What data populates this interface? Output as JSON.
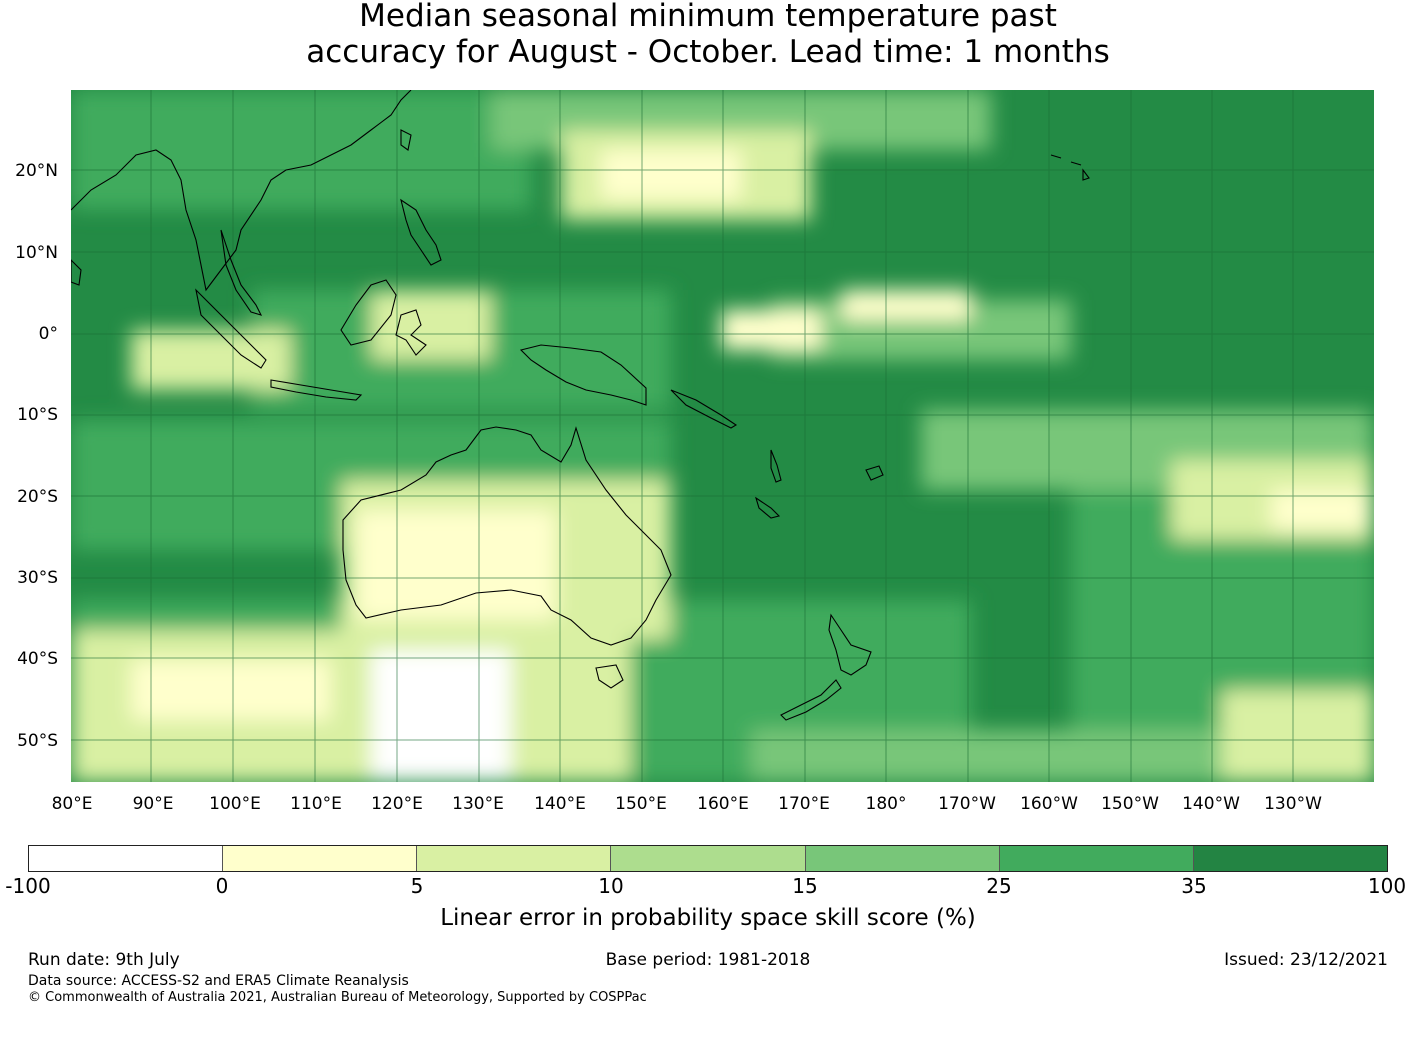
{
  "title_line1": "Median seasonal minimum temperature past",
  "title_line2": "accuracy for August - October. Lead time: 1 months",
  "map": {
    "lat_labels": [
      "20°N",
      "10°N",
      "0°",
      "10°S",
      "20°S",
      "30°S",
      "40°S",
      "50°S"
    ],
    "lon_labels": [
      "80°E",
      "90°E",
      "100°E",
      "110°E",
      "120°E",
      "130°E",
      "140°E",
      "150°E",
      "160°E",
      "170°E",
      "180°",
      "170°W",
      "160°W",
      "150°W",
      "140°W",
      "130°W"
    ],
    "ocean_color": "#238b45",
    "coastline_color": "#000000"
  },
  "colorbar": {
    "ticks": [
      "-100",
      "0",
      "5",
      "10",
      "15",
      "25",
      "35",
      "100"
    ],
    "colors": [
      "#ffffff",
      "#ffffcc",
      "#d9f0a3",
      "#addd8e",
      "#78c679",
      "#41ab5d",
      "#238443"
    ],
    "label": "Linear error in probability space skill score (%)"
  },
  "footer": {
    "run_date": "Run date: 9th July",
    "base_period": "Base period: 1981-2018",
    "issued": "Issued: 23/12/2021",
    "data_source": "Data source: ACCESS-S2 and ERA5 Climate Reanalysis",
    "copyright": "© Commonwealth of Australia 2021, Australian Bureau of Meteorology, Supported by COSPPac"
  }
}
